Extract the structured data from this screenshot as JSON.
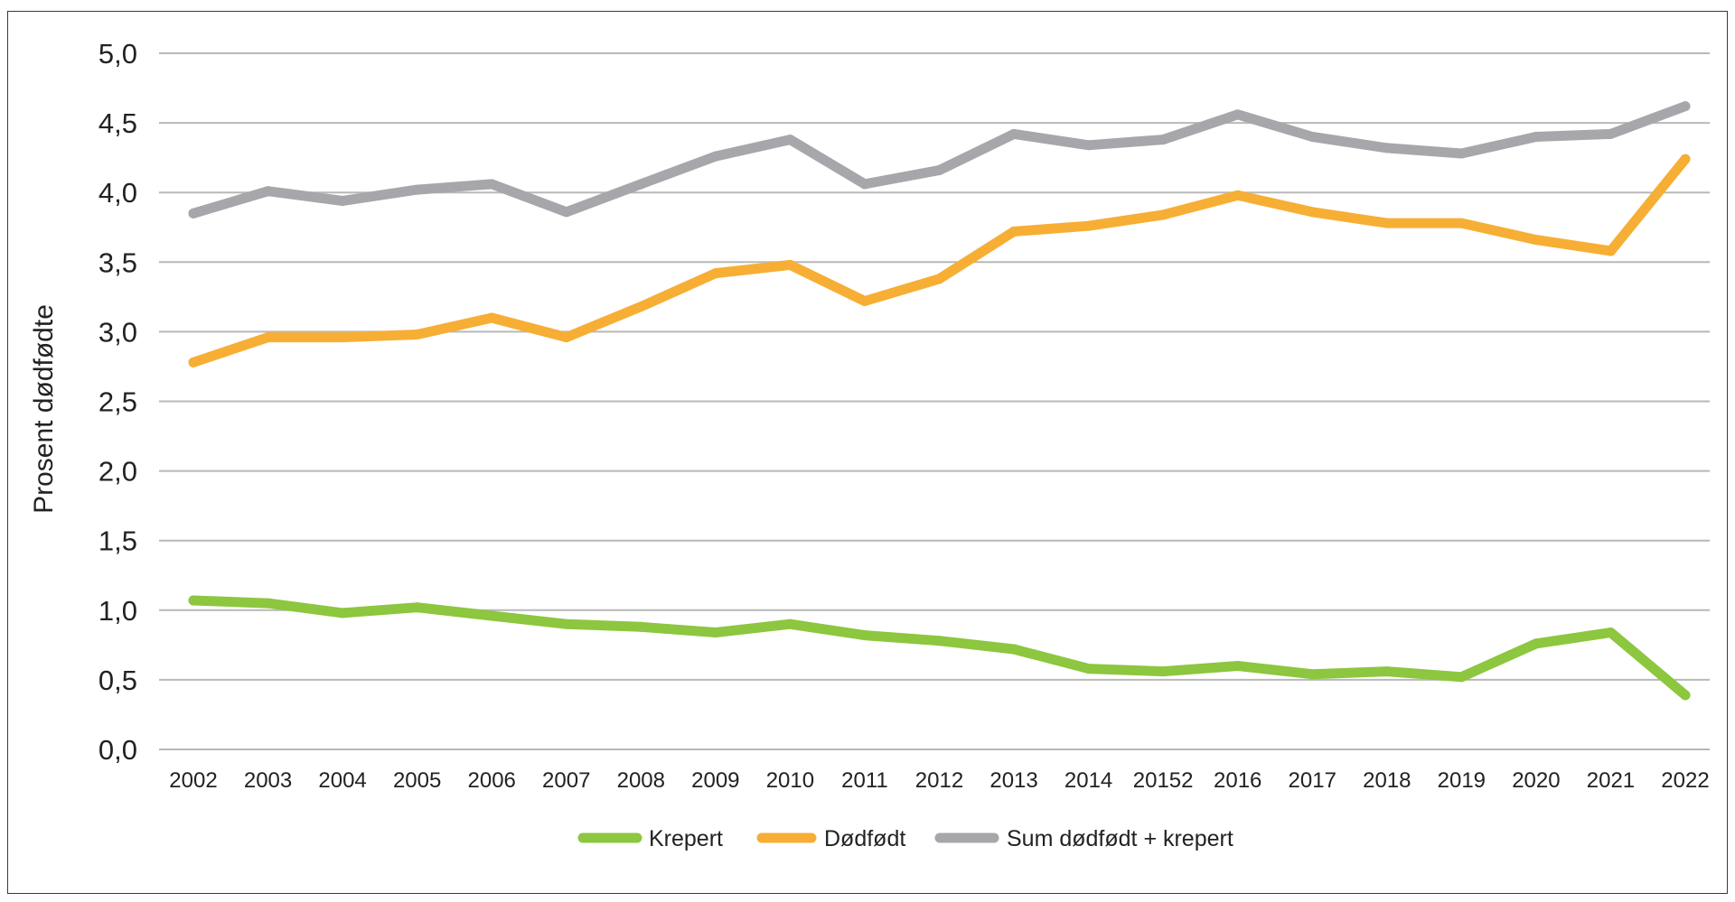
{
  "chart_data": {
    "type": "line",
    "title": "",
    "xlabel": "",
    "ylabel": "Prosent dødfødte",
    "categories": [
      "2002",
      "2003",
      "2004",
      "2005",
      "2006",
      "2007",
      "2008",
      "2009",
      "2010",
      "2011",
      "2012",
      "2013",
      "2014",
      "20152",
      "2016",
      "2017",
      "2018",
      "2019",
      "2020",
      "2021",
      "2022"
    ],
    "y_tick_labels": [
      "0,0",
      "0,5",
      "1,0",
      "1,5",
      "2,0",
      "2,5",
      "3,0",
      "3,5",
      "4,0",
      "4,5",
      "5,0"
    ],
    "ylim": [
      0,
      5
    ],
    "grid": "horizontal",
    "legend_position": "bottom",
    "series": [
      {
        "name": "Krepert",
        "color": "#8DC63F",
        "values": [
          1.07,
          1.05,
          0.98,
          1.02,
          0.96,
          0.9,
          0.88,
          0.84,
          0.9,
          0.82,
          0.78,
          0.72,
          0.58,
          0.56,
          0.6,
          0.54,
          0.56,
          0.52,
          0.76,
          0.84,
          0.39
        ]
      },
      {
        "name": "Dødfødt",
        "color": "#F7AE35",
        "values": [
          2.78,
          2.96,
          2.96,
          2.98,
          3.1,
          2.96,
          3.18,
          3.42,
          3.48,
          3.22,
          3.38,
          3.72,
          3.76,
          3.84,
          3.98,
          3.86,
          3.78,
          3.78,
          3.66,
          3.58,
          4.24
        ]
      },
      {
        "name": "Sum dødfødt + krepert",
        "color": "#A7A6AB",
        "values": [
          3.85,
          4.01,
          3.94,
          4.02,
          4.06,
          3.86,
          4.06,
          4.26,
          4.38,
          4.06,
          4.16,
          4.42,
          4.34,
          4.38,
          4.56,
          4.4,
          4.32,
          4.28,
          4.4,
          4.42,
          4.62
        ]
      }
    ]
  }
}
